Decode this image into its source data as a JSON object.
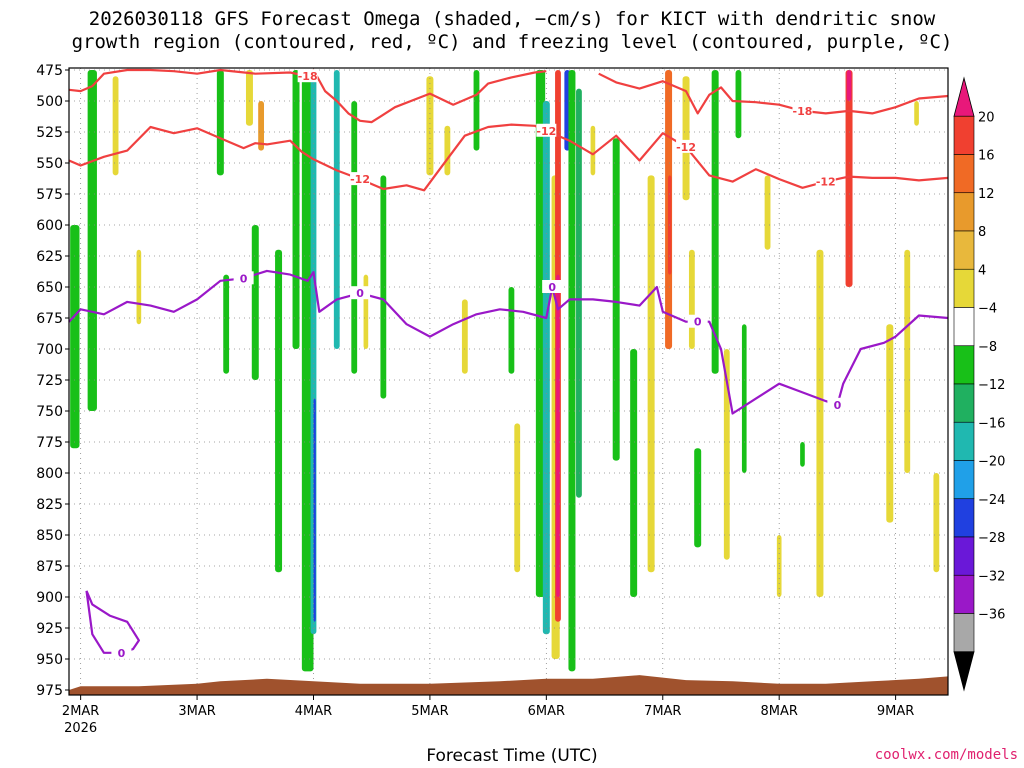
{
  "title": {
    "line1": "2026030118 GFS Forecast Omega (shaded, −cm/s) for KICT with dendritic snow",
    "line2": "growth region (contoured, red, ºC) and freezing level (contoured, purple, ºC)"
  },
  "credit": "coolwx.com/models",
  "chart_data": {
    "type": "heatmap",
    "title": "2026030118 GFS Forecast Omega (shaded, −cm/s) for KICT with dendritic snow growth region (contoured, red, ºC) and freezing level (contoured, purple, ºC)",
    "xlabel": "Forecast Time (UTC)",
    "ylabel": "",
    "x_ticks": [
      "2MAR",
      "3MAR",
      "4MAR",
      "5MAR",
      "6MAR",
      "7MAR",
      "8MAR",
      "9MAR"
    ],
    "x_tick_year": "2026",
    "xlim_days": [
      1.9,
      9.45
    ],
    "y_ticks": [
      475,
      500,
      525,
      550,
      575,
      600,
      625,
      650,
      675,
      700,
      725,
      750,
      775,
      800,
      825,
      850,
      875,
      900,
      925,
      950,
      975
    ],
    "ylim": [
      975,
      475
    ],
    "grid": true,
    "colorbar": {
      "labels": [
        "20",
        "16",
        "12",
        "8",
        "4",
        "−4",
        "−8",
        "−12",
        "−16",
        "−20",
        "−24",
        "−28",
        "−32",
        "−36"
      ],
      "colors": [
        "#e8187a",
        "#f04030",
        "#f06a25",
        "#e89a2c",
        "#e8b83c",
        "#e6d838",
        "#ffffff",
        "#18c018",
        "#20b060",
        "#20b8b0",
        "#20a0e8",
        "#2040e0",
        "#6a18d8",
        "#9a18c8",
        "#a8a8a8",
        "#000000"
      ]
    },
    "omega_bands": [
      {
        "day": 1.95,
        "width": 0.08,
        "top": 600,
        "bottom": 780,
        "color": "#18c018"
      },
      {
        "day": 2.1,
        "width": 0.08,
        "top": 475,
        "bottom": 750,
        "color": "#18c018"
      },
      {
        "day": 2.3,
        "width": 0.05,
        "top": 480,
        "bottom": 560,
        "color": "#e6d838"
      },
      {
        "day": 2.5,
        "width": 0.04,
        "top": 620,
        "bottom": 680,
        "color": "#e6d838"
      },
      {
        "day": 3.2,
        "width": 0.06,
        "top": 475,
        "bottom": 560,
        "color": "#18c018"
      },
      {
        "day": 3.25,
        "width": 0.05,
        "top": 640,
        "bottom": 720,
        "color": "#18c018"
      },
      {
        "day": 3.45,
        "width": 0.06,
        "top": 475,
        "bottom": 520,
        "color": "#e6d838"
      },
      {
        "day": 3.5,
        "width": 0.06,
        "top": 600,
        "bottom": 725,
        "color": "#18c018"
      },
      {
        "day": 3.55,
        "width": 0.05,
        "top": 500,
        "bottom": 540,
        "color": "#e89a2c"
      },
      {
        "day": 3.7,
        "width": 0.06,
        "top": 620,
        "bottom": 880,
        "color": "#18c018"
      },
      {
        "day": 3.85,
        "width": 0.06,
        "top": 475,
        "bottom": 700,
        "color": "#18c018"
      },
      {
        "day": 3.95,
        "width": 0.1,
        "top": 475,
        "bottom": 960,
        "color": "#18c018"
      },
      {
        "day": 4.0,
        "width": 0.05,
        "top": 475,
        "bottom": 930,
        "color": "#20b8b0"
      },
      {
        "day": 4.01,
        "width": 0.02,
        "top": 740,
        "bottom": 920,
        "color": "#2040e0"
      },
      {
        "day": 4.2,
        "width": 0.05,
        "top": 475,
        "bottom": 700,
        "color": "#20b8b0"
      },
      {
        "day": 4.35,
        "width": 0.05,
        "top": 500,
        "bottom": 720,
        "color": "#18c018"
      },
      {
        "day": 4.45,
        "width": 0.04,
        "top": 640,
        "bottom": 700,
        "color": "#e6d838"
      },
      {
        "day": 4.6,
        "width": 0.05,
        "top": 560,
        "bottom": 740,
        "color": "#18c018"
      },
      {
        "day": 5.0,
        "width": 0.06,
        "top": 480,
        "bottom": 560,
        "color": "#e6d838"
      },
      {
        "day": 5.15,
        "width": 0.05,
        "top": 520,
        "bottom": 560,
        "color": "#e6d838"
      },
      {
        "day": 5.3,
        "width": 0.05,
        "top": 660,
        "bottom": 720,
        "color": "#e6d838"
      },
      {
        "day": 5.4,
        "width": 0.05,
        "top": 475,
        "bottom": 540,
        "color": "#18c018"
      },
      {
        "day": 5.7,
        "width": 0.05,
        "top": 650,
        "bottom": 720,
        "color": "#18c018"
      },
      {
        "day": 5.75,
        "width": 0.05,
        "top": 760,
        "bottom": 880,
        "color": "#e6d838"
      },
      {
        "day": 5.95,
        "width": 0.08,
        "top": 475,
        "bottom": 900,
        "color": "#18c018"
      },
      {
        "day": 6.0,
        "width": 0.06,
        "top": 500,
        "bottom": 930,
        "color": "#20b8b0"
      },
      {
        "day": 6.08,
        "width": 0.07,
        "top": 560,
        "bottom": 950,
        "color": "#e6d838"
      },
      {
        "day": 6.1,
        "width": 0.05,
        "top": 475,
        "bottom": 920,
        "color": "#f04030"
      },
      {
        "day": 6.1,
        "width": 0.03,
        "top": 640,
        "bottom": 900,
        "color": "#e8187a"
      },
      {
        "day": 6.18,
        "width": 0.05,
        "top": 475,
        "bottom": 540,
        "color": "#2040e0"
      },
      {
        "day": 6.22,
        "width": 0.06,
        "top": 475,
        "bottom": 960,
        "color": "#18c018"
      },
      {
        "day": 6.28,
        "width": 0.05,
        "top": 490,
        "bottom": 820,
        "color": "#20b060"
      },
      {
        "day": 6.4,
        "width": 0.04,
        "top": 520,
        "bottom": 560,
        "color": "#e6d838"
      },
      {
        "day": 6.6,
        "width": 0.06,
        "top": 530,
        "bottom": 790,
        "color": "#18c018"
      },
      {
        "day": 6.75,
        "width": 0.06,
        "top": 700,
        "bottom": 900,
        "color": "#18c018"
      },
      {
        "day": 6.9,
        "width": 0.06,
        "top": 560,
        "bottom": 880,
        "color": "#e6d838"
      },
      {
        "day": 7.05,
        "width": 0.06,
        "top": 475,
        "bottom": 700,
        "color": "#f06a25"
      },
      {
        "day": 7.06,
        "width": 0.03,
        "top": 560,
        "bottom": 640,
        "color": "#f04030"
      },
      {
        "day": 7.2,
        "width": 0.06,
        "top": 480,
        "bottom": 580,
        "color": "#e6d838"
      },
      {
        "day": 7.25,
        "width": 0.05,
        "top": 620,
        "bottom": 700,
        "color": "#e6d838"
      },
      {
        "day": 7.3,
        "width": 0.06,
        "top": 780,
        "bottom": 860,
        "color": "#18c018"
      },
      {
        "day": 7.45,
        "width": 0.06,
        "top": 475,
        "bottom": 720,
        "color": "#18c018"
      },
      {
        "day": 7.55,
        "width": 0.05,
        "top": 700,
        "bottom": 870,
        "color": "#e6d838"
      },
      {
        "day": 7.65,
        "width": 0.05,
        "top": 475,
        "bottom": 530,
        "color": "#18c018"
      },
      {
        "day": 7.7,
        "width": 0.04,
        "top": 680,
        "bottom": 800,
        "color": "#18c018"
      },
      {
        "day": 7.9,
        "width": 0.05,
        "top": 560,
        "bottom": 620,
        "color": "#e6d838"
      },
      {
        "day": 8.0,
        "width": 0.04,
        "top": 850,
        "bottom": 900,
        "color": "#e6d838"
      },
      {
        "day": 8.2,
        "width": 0.04,
        "top": 775,
        "bottom": 795,
        "color": "#18c018"
      },
      {
        "day": 8.35,
        "width": 0.06,
        "top": 620,
        "bottom": 900,
        "color": "#e6d838"
      },
      {
        "day": 8.6,
        "width": 0.06,
        "top": 475,
        "bottom": 650,
        "color": "#f04030"
      },
      {
        "day": 8.6,
        "width": 0.04,
        "top": 475,
        "bottom": 500,
        "color": "#e8187a"
      },
      {
        "day": 8.95,
        "width": 0.06,
        "top": 680,
        "bottom": 840,
        "color": "#e6d838"
      },
      {
        "day": 9.1,
        "width": 0.05,
        "top": 620,
        "bottom": 800,
        "color": "#e6d838"
      },
      {
        "day": 9.18,
        "width": 0.04,
        "top": 500,
        "bottom": 520,
        "color": "#e6d838"
      },
      {
        "day": 9.35,
        "width": 0.05,
        "top": 800,
        "bottom": 880,
        "color": "#e6d838"
      }
    ],
    "contours": {
      "red_minus18": {
        "label": "-18",
        "color": "#f04040",
        "days": [
          1.9,
          2.0,
          2.1,
          2.2,
          2.4,
          2.6,
          2.8,
          3.0,
          3.2,
          3.5,
          3.8,
          3.95,
          4.0,
          4.1,
          4.2,
          4.3,
          4.4,
          4.5,
          4.7,
          5.0,
          5.2,
          5.4,
          5.5,
          5.7,
          5.9,
          6.0
        ],
        "pressures": [
          491,
          492,
          488,
          478,
          475,
          475,
          476,
          478,
          475,
          478,
          477,
          480,
          475,
          492,
          500,
          510,
          516,
          517,
          505,
          494,
          503,
          495,
          486,
          481,
          477,
          476
        ]
      },
      "red_minus18_b": {
        "label": "-18",
        "color": "#f04040",
        "days": [
          6.45,
          6.6,
          6.8,
          7.0,
          7.2,
          7.3,
          7.4,
          7.5,
          7.6,
          7.8,
          8.0,
          8.2,
          8.4,
          8.6,
          8.8,
          9.0,
          9.2,
          9.45
        ],
        "pressures": [
          478,
          485,
          490,
          484,
          492,
          510,
          495,
          489,
          500,
          501,
          503,
          508,
          510,
          508,
          510,
          505,
          498,
          496
        ]
      },
      "red_minus12": {
        "label": "-12",
        "color": "#f04040",
        "days": [
          1.9,
          2.0,
          2.2,
          2.4,
          2.6,
          2.8,
          3.0,
          3.2,
          3.4,
          3.5,
          3.6,
          3.8,
          3.9,
          4.0,
          4.2,
          4.4,
          4.6,
          4.8,
          4.95,
          5.1,
          5.3,
          5.5,
          5.7,
          5.9,
          6.0,
          6.2,
          6.4,
          6.6,
          6.8,
          7.0,
          7.2,
          7.4,
          7.6,
          7.8,
          8.0,
          8.2,
          8.4,
          8.6,
          8.8,
          9.0,
          9.2,
          9.45
        ],
        "pressures": [
          548,
          552,
          545,
          540,
          521,
          526,
          522,
          530,
          538,
          534,
          535,
          532,
          541,
          547,
          556,
          563,
          571,
          568,
          572,
          553,
          528,
          521,
          519,
          520,
          524,
          532,
          543,
          528,
          548,
          526,
          537,
          560,
          565,
          555,
          563,
          570,
          565,
          561,
          562,
          562,
          564,
          562
        ]
      },
      "purple_0": {
        "label": "0",
        "color": "#9a18c8",
        "days": [
          1.9,
          2.0,
          2.2,
          2.4,
          2.6,
          2.8,
          3.0,
          3.2,
          3.4,
          3.6,
          3.8,
          3.95,
          4.0,
          4.05,
          4.2,
          4.4,
          4.6,
          4.8,
          5.0,
          5.2,
          5.4,
          5.6,
          5.8,
          6.0,
          6.05,
          6.1,
          6.2,
          6.4,
          6.6,
          6.8,
          6.95,
          7.0,
          7.2,
          7.3,
          7.4,
          7.5,
          7.6,
          7.8,
          8.0,
          8.2,
          8.4,
          8.5,
          8.55,
          8.7,
          8.9,
          9.0,
          9.2,
          9.45
        ],
        "pressures": [
          678,
          668,
          672,
          662,
          665,
          670,
          660,
          645,
          643,
          637,
          640,
          645,
          638,
          670,
          660,
          655,
          660,
          680,
          690,
          680,
          672,
          668,
          670,
          675,
          650,
          668,
          660,
          660,
          662,
          665,
          650,
          670,
          678,
          678,
          678,
          700,
          752,
          740,
          728,
          735,
          742,
          745,
          728,
          700,
          695,
          690,
          673,
          675
        ]
      },
      "purple_0_closed": {
        "label": "0",
        "color": "#9a18c8",
        "days": [
          2.05,
          2.1,
          2.25,
          2.4,
          2.5,
          2.45,
          2.35,
          2.2,
          2.1,
          2.05
        ],
        "pressures": [
          895,
          906,
          915,
          920,
          935,
          942,
          945,
          945,
          930,
          895
        ]
      }
    }
  }
}
